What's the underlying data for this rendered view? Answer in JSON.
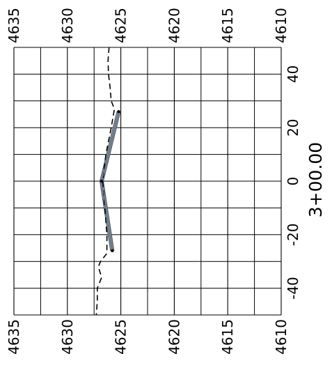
{
  "chart_data": {
    "type": "line",
    "station_label": "3+00.00",
    "elev_axis": {
      "range": [
        4610,
        4635
      ],
      "ticks": [
        "4635",
        "4630",
        "4625",
        "4620",
        "4615",
        "4610"
      ],
      "tick_values": [
        4635,
        4630,
        4625,
        4620,
        4615,
        4610
      ]
    },
    "offset_axis": {
      "range": [
        -50,
        50
      ],
      "ticks": [
        "40",
        "20",
        "0",
        "-20",
        "-40"
      ],
      "tick_values": [
        40,
        20,
        0,
        -20,
        -40
      ]
    },
    "grid": true,
    "series": [
      {
        "style": "dashed",
        "points": [
          [
            50,
            4626.1
          ],
          [
            45,
            4626.2
          ],
          [
            40,
            4626.15
          ],
          [
            35,
            4626.0
          ],
          [
            30,
            4625.9
          ],
          [
            27,
            4625.6
          ],
          [
            20,
            4625.9
          ],
          [
            10,
            4626.4
          ],
          [
            0,
            4626.7
          ],
          [
            -10,
            4626.5
          ],
          [
            -20,
            4626.3
          ],
          [
            -27,
            4626.3
          ],
          [
            -30,
            4626.9
          ],
          [
            -32,
            4627.1
          ],
          [
            -36,
            4626.8
          ],
          [
            -40,
            4627.2
          ],
          [
            -45,
            4627.2
          ],
          [
            -50,
            4627.3
          ]
        ]
      },
      {
        "style": "solid",
        "points": [
          [
            26,
            4625.2
          ],
          [
            0,
            4626.8
          ],
          [
            -26,
            4625.8
          ]
        ]
      }
    ],
    "fill_color": "#8c8c8c"
  }
}
